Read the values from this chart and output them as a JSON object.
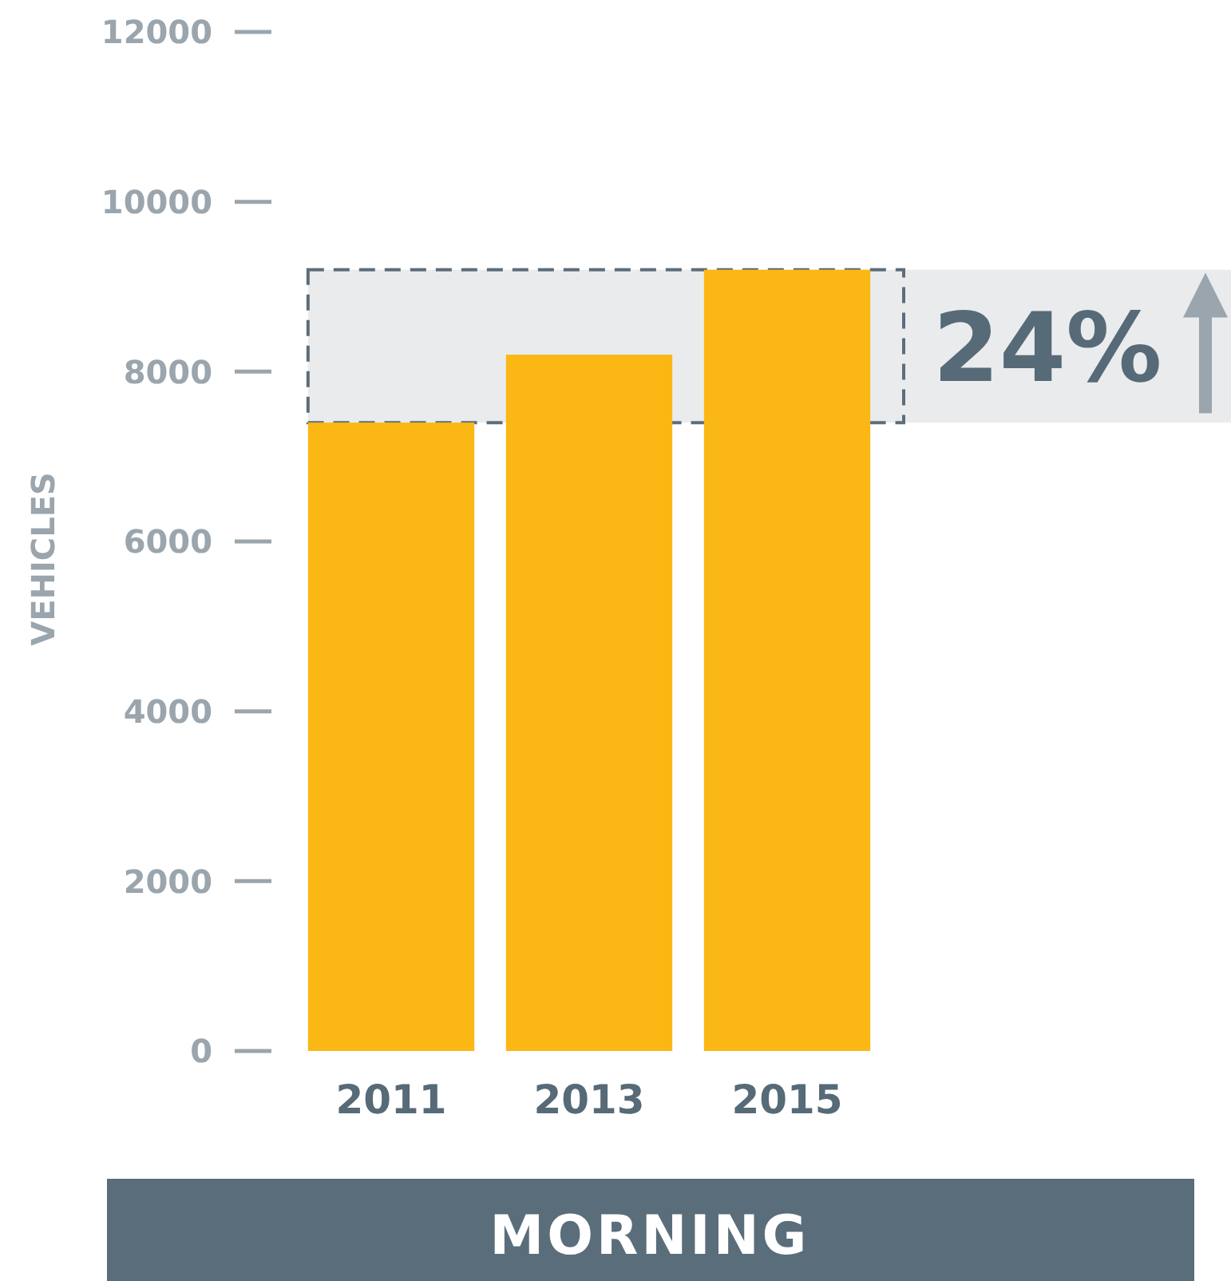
{
  "chart_data": {
    "type": "bar",
    "categories": [
      "2011",
      "2013",
      "2015"
    ],
    "values": [
      7400,
      8200,
      9200
    ],
    "color": "#fbb713",
    "ylim": [
      0,
      12000
    ],
    "yticks": [
      0,
      2000,
      4000,
      6000,
      8000,
      10000,
      12000
    ],
    "ylabel": "VEHICLES",
    "xlabel": "MORNING",
    "grid": false,
    "bands": [
      {
        "axis": "y",
        "from": 7400,
        "to": 9200,
        "label": "24%",
        "color": "#e9ebed"
      }
    ]
  }
}
